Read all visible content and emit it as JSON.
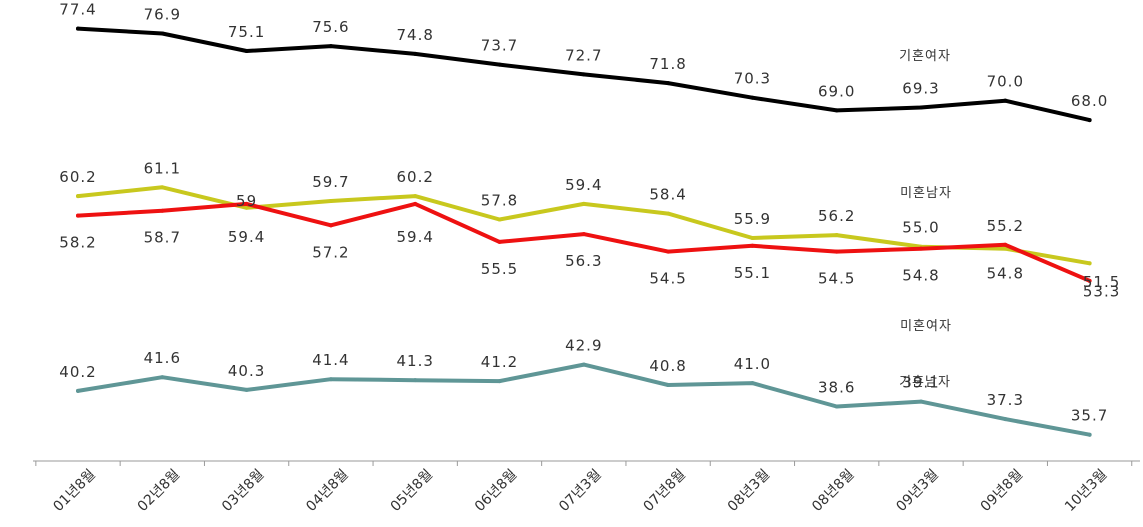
{
  "chart_data": {
    "type": "line",
    "title": "",
    "xlabel": "",
    "ylabel": "",
    "categories": [
      "01년8월",
      "02년8월",
      "03년8월",
      "04년8월",
      "05년8월",
      "06년8월",
      "07년3월",
      "07년8월",
      "08년3월",
      "08년8월",
      "09년3월",
      "09년8월",
      "10년3월"
    ],
    "ylim": [
      33,
      79
    ],
    "grid": false,
    "series": [
      {
        "name": "기혼여자",
        "color": "#000000",
        "values": [
          77.4,
          76.9,
          75.1,
          75.6,
          74.8,
          73.7,
          72.7,
          71.8,
          70.3,
          69.0,
          69.3,
          70.0,
          68.0
        ],
        "value_labels": [
          "77.4",
          "76.9",
          "75.1",
          "75.6",
          "74.8",
          "73.7",
          "72.7",
          "71.8",
          "70.3",
          "69.0",
          "69.3",
          "70.0",
          "68.0"
        ]
      },
      {
        "name": "미혼남자",
        "color": "#c8c81e",
        "values": [
          60.2,
          61.1,
          59.0,
          59.7,
          60.2,
          57.8,
          59.4,
          58.4,
          55.9,
          56.2,
          55.0,
          54.8,
          53.3
        ],
        "value_labels": [
          "60.2",
          "61.1",
          "59",
          "59.7",
          "60.2",
          "57.8",
          "59.4",
          "58.4",
          "55.9",
          "56.2",
          "55.0",
          "54.8",
          "53.3"
        ]
      },
      {
        "name": "미혼여자",
        "color": "#ee1111",
        "values": [
          58.2,
          58.7,
          59.4,
          57.2,
          59.4,
          55.5,
          56.3,
          54.5,
          55.1,
          54.5,
          54.8,
          55.2,
          51.5
        ],
        "value_labels": [
          "58.2",
          "58.7",
          "59.4",
          "57.2",
          "59.4",
          "55.5",
          "56.3",
          "54.5",
          "55.1",
          "54.5",
          "54.8",
          "55.2",
          "51.5"
        ]
      },
      {
        "name": "기혼남자",
        "color": "#5f9696",
        "values": [
          40.2,
          41.6,
          40.3,
          41.4,
          41.3,
          41.2,
          42.9,
          40.8,
          41.0,
          38.6,
          39.1,
          37.3,
          35.7
        ],
        "value_labels": [
          "40.2",
          "41.6",
          "40.3",
          "41.4",
          "41.3",
          "41.2",
          "42.9",
          "40.8",
          "41.0",
          "38.6",
          "39.1",
          "37.3",
          "35.7"
        ]
      }
    ]
  }
}
